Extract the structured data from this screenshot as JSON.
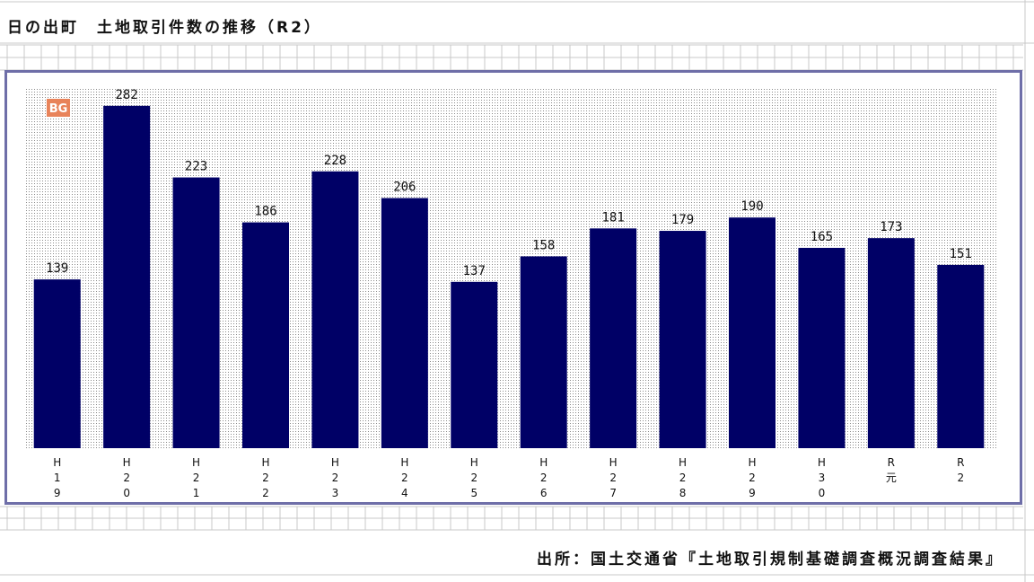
{
  "title": "日の出町　土地取引件数の推移（R2）",
  "source": "出所：国土交通省『土地取引規制基礎調査概況調査結果』",
  "badge": "BG",
  "colors": {
    "bar": "#000066",
    "frame": "#6e6ea8",
    "plot_dots": "#8a8a8a",
    "badge": "#e8835a",
    "grid": "#c8c8c8"
  },
  "chart_data": {
    "type": "bar",
    "title": "日の出町　土地取引件数の推移（R2）",
    "xlabel": "",
    "ylabel": "",
    "categories": [
      [
        "H",
        "1",
        "9"
      ],
      [
        "H",
        "2",
        "0"
      ],
      [
        "H",
        "2",
        "1"
      ],
      [
        "H",
        "2",
        "2"
      ],
      [
        "H",
        "2",
        "3"
      ],
      [
        "H",
        "2",
        "4"
      ],
      [
        "H",
        "2",
        "5"
      ],
      [
        "H",
        "2",
        "6"
      ],
      [
        "H",
        "2",
        "7"
      ],
      [
        "H",
        "2",
        "8"
      ],
      [
        "H",
        "2",
        "9"
      ],
      [
        "H",
        "3",
        "0"
      ],
      [
        "R",
        "元"
      ],
      [
        "R",
        "2"
      ]
    ],
    "values": [
      139,
      282,
      223,
      186,
      228,
      206,
      137,
      158,
      181,
      179,
      190,
      165,
      173,
      151
    ],
    "labels": [
      "139",
      "282",
      "223",
      "186",
      "228",
      "206",
      "137",
      "158",
      "181",
      "179",
      "190",
      "165",
      "173",
      "151"
    ],
    "ylim": [
      0,
      290
    ],
    "grid": false,
    "legend": "none"
  }
}
